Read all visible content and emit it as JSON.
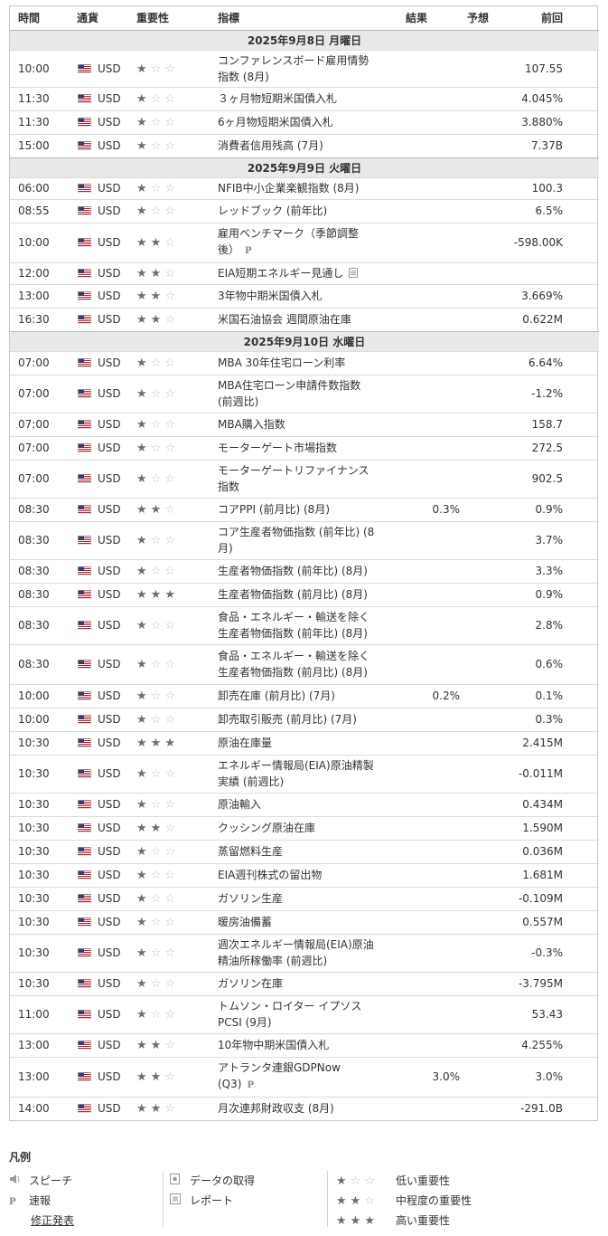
{
  "headers": {
    "time": "時間",
    "currency": "通貨",
    "importance": "重要性",
    "indicator": "指標",
    "actual": "結果",
    "forecast": "予想",
    "previous": "前回"
  },
  "days": [
    {
      "date": "2025年9月8日 月曜日",
      "rows": [
        {
          "time": "10:00",
          "currency": "USD",
          "stars": 1,
          "indicator": "コンファレンスボード雇用情勢指数 (8月)",
          "actual": "",
          "forecast": "",
          "previous": "107.55",
          "h": 40
        },
        {
          "time": "11:30",
          "currency": "USD",
          "stars": 1,
          "indicator": "３ヶ月物短期米国債入札",
          "actual": "",
          "forecast": "",
          "previous": "4.045%",
          "h": 26
        },
        {
          "time": "11:30",
          "currency": "USD",
          "stars": 1,
          "indicator": "6ヶ月物短期米国債入札",
          "actual": "",
          "forecast": "",
          "previous": "3.880%",
          "h": 26
        },
        {
          "time": "15:00",
          "currency": "USD",
          "stars": 1,
          "indicator": "消費者信用残高 (7月)",
          "actual": "",
          "forecast": "",
          "previous": "7.37B",
          "h": 26
        }
      ]
    },
    {
      "date": "2025年9月9日 火曜日",
      "rows": [
        {
          "time": "06:00",
          "currency": "USD",
          "stars": 1,
          "indicator": "NFIB中小企業楽観指数 (8月)",
          "actual": "",
          "forecast": "",
          "previous": "100.3",
          "h": 24
        },
        {
          "time": "08:55",
          "currency": "USD",
          "stars": 1,
          "indicator": "レッドブック (前年比)",
          "actual": "",
          "forecast": "",
          "previous": "6.5%",
          "h": 26
        },
        {
          "time": "10:00",
          "currency": "USD",
          "stars": 2,
          "indicator": "雇用ベンチマーク（季節調整後）",
          "badge": "P",
          "actual": "",
          "forecast": "",
          "previous": "-598.00K",
          "h": 44
        },
        {
          "time": "12:00",
          "currency": "USD",
          "stars": 2,
          "indicator": "EIA短期エネルギー見通し",
          "badge": "report",
          "actual": "",
          "forecast": "",
          "previous": "",
          "h": 24
        },
        {
          "time": "13:00",
          "currency": "USD",
          "stars": 2,
          "indicator": "3年物中期米国債入札",
          "actual": "",
          "forecast": "",
          "previous": "3.669%",
          "h": 26
        },
        {
          "time": "16:30",
          "currency": "USD",
          "stars": 2,
          "indicator": "米国石油協会 週間原油在庫",
          "actual": "",
          "forecast": "",
          "previous": "0.622M",
          "h": 26
        }
      ]
    },
    {
      "date": "2025年9月10日 水曜日",
      "rows": [
        {
          "time": "07:00",
          "currency": "USD",
          "stars": 1,
          "indicator": "MBA 30年住宅ローン利率",
          "actual": "",
          "forecast": "",
          "previous": "6.64%",
          "h": 26
        },
        {
          "time": "07:00",
          "currency": "USD",
          "stars": 1,
          "indicator": "MBA住宅ローン申請件数指数 (前週比)",
          "actual": "",
          "forecast": "",
          "previous": "-1.2%",
          "h": 42
        },
        {
          "time": "07:00",
          "currency": "USD",
          "stars": 1,
          "indicator": "MBA購入指数",
          "actual": "",
          "forecast": "",
          "previous": "158.7",
          "h": 26
        },
        {
          "time": "07:00",
          "currency": "USD",
          "stars": 1,
          "indicator": "モーターゲート市場指数",
          "actual": "",
          "forecast": "",
          "previous": "272.5",
          "h": 26
        },
        {
          "time": "07:00",
          "currency": "USD",
          "stars": 1,
          "indicator": "モーターゲートリファイナンス指数",
          "actual": "",
          "forecast": "",
          "previous": "902.5",
          "h": 42
        },
        {
          "time": "08:30",
          "currency": "USD",
          "stars": 2,
          "indicator": "コアPPI (前月比) (8月)",
          "actual": "",
          "forecast": "0.3%",
          "previous": "0.9%",
          "h": 26
        },
        {
          "time": "08:30",
          "currency": "USD",
          "stars": 1,
          "indicator": "コア生産者物価指数 (前年比) (8月)",
          "actual": "",
          "forecast": "",
          "previous": "3.7%",
          "h": 42
        },
        {
          "time": "08:30",
          "currency": "USD",
          "stars": 1,
          "indicator": "生産者物価指数 (前年比) (8月)",
          "actual": "",
          "forecast": "",
          "previous": "3.3%",
          "h": 26
        },
        {
          "time": "08:30",
          "currency": "USD",
          "stars": 3,
          "indicator": "生産者物価指数 (前月比) (8月)",
          "actual": "",
          "forecast": "",
          "previous": "0.9%",
          "h": 26
        },
        {
          "time": "08:30",
          "currency": "USD",
          "stars": 1,
          "indicator": "食品・エネルギー・輸送を除く生産者物価指数 (前年比) (8月)",
          "actual": "",
          "forecast": "",
          "previous": "2.8%",
          "h": 42
        },
        {
          "time": "08:30",
          "currency": "USD",
          "stars": 1,
          "indicator": "食品・エネルギー・輸送を除く生産者物価指数 (前月比) (8月)",
          "actual": "",
          "forecast": "",
          "previous": "0.6%",
          "h": 44
        },
        {
          "time": "10:00",
          "currency": "USD",
          "stars": 1,
          "indicator": "卸売在庫 (前月比) (7月)",
          "actual": "",
          "forecast": "0.2%",
          "previous": "0.1%",
          "h": 26
        },
        {
          "time": "10:00",
          "currency": "USD",
          "stars": 1,
          "indicator": "卸売取引販売 (前月比) (7月)",
          "actual": "",
          "forecast": "",
          "previous": "0.3%",
          "h": 26
        },
        {
          "time": "10:30",
          "currency": "USD",
          "stars": 3,
          "indicator": "原油在庫量",
          "actual": "",
          "forecast": "",
          "previous": "2.415M",
          "h": 26
        },
        {
          "time": "10:30",
          "currency": "USD",
          "stars": 1,
          "indicator": "エネルギー情報局(EIA)原油精製実績 (前週比)",
          "actual": "",
          "forecast": "",
          "previous": "-0.011M",
          "h": 42
        },
        {
          "time": "10:30",
          "currency": "USD",
          "stars": 1,
          "indicator": "原油輸入",
          "actual": "",
          "forecast": "",
          "previous": "0.434M",
          "h": 26
        },
        {
          "time": "10:30",
          "currency": "USD",
          "stars": 2,
          "indicator": "クッシング原油在庫",
          "actual": "",
          "forecast": "",
          "previous": "1.590M",
          "h": 26
        },
        {
          "time": "10:30",
          "currency": "USD",
          "stars": 1,
          "indicator": "蒸留燃料生産",
          "actual": "",
          "forecast": "",
          "previous": "0.036M",
          "h": 26
        },
        {
          "time": "10:30",
          "currency": "USD",
          "stars": 1,
          "indicator": "EIA週刊株式の留出物",
          "actual": "",
          "forecast": "",
          "previous": "1.681M",
          "h": 26
        },
        {
          "time": "10:30",
          "currency": "USD",
          "stars": 1,
          "indicator": "ガソリン生産",
          "actual": "",
          "forecast": "",
          "previous": "-0.109M",
          "h": 26
        },
        {
          "time": "10:30",
          "currency": "USD",
          "stars": 1,
          "indicator": "暖房油備蓄",
          "actual": "",
          "forecast": "",
          "previous": "0.557M",
          "h": 26
        },
        {
          "time": "10:30",
          "currency": "USD",
          "stars": 1,
          "indicator": "週次エネルギー情報局(EIA)原油精油所稼働率 (前週比)",
          "actual": "",
          "forecast": "",
          "previous": "-0.3%",
          "h": 42
        },
        {
          "time": "10:30",
          "currency": "USD",
          "stars": 1,
          "indicator": "ガソリン在庫",
          "actual": "",
          "forecast": "",
          "previous": "-3.795M",
          "h": 26
        },
        {
          "time": "11:00",
          "currency": "USD",
          "stars": 1,
          "indicator": "トムソン・ロイター イプソスPCSI (9月)",
          "actual": "",
          "forecast": "",
          "previous": "53.43",
          "h": 42
        },
        {
          "time": "13:00",
          "currency": "USD",
          "stars": 2,
          "indicator": "10年物中期米国債入札",
          "actual": "",
          "forecast": "",
          "previous": "4.255%",
          "h": 26
        },
        {
          "time": "13:00",
          "currency": "USD",
          "stars": 2,
          "indicator": "アトランタ連銀GDPNow (Q3)",
          "badge": "P",
          "actual": "",
          "forecast": "3.0%",
          "previous": "3.0%",
          "h": 44
        },
        {
          "time": "14:00",
          "currency": "USD",
          "stars": 2,
          "indicator": "月次連邦財政収支 (8月)",
          "actual": "",
          "forecast": "",
          "previous": "-291.0B",
          "h": 26
        }
      ]
    }
  ],
  "legend": {
    "title": "凡例",
    "speech": "スピーチ",
    "prelim_icon": "P",
    "prelim": "速報",
    "revised": "修正発表",
    "retrieval": "データの取得",
    "report": "レポート",
    "low": "低い重要性",
    "medium": "中程度の重要性",
    "high": "高い重要性"
  },
  "colors": {
    "star_on": "#6e6e6e",
    "star_off": "#c4c4c4",
    "date_bg": "#e9e9e9",
    "flag_red": "#b22234",
    "flag_blue": "#3c3b6e"
  }
}
